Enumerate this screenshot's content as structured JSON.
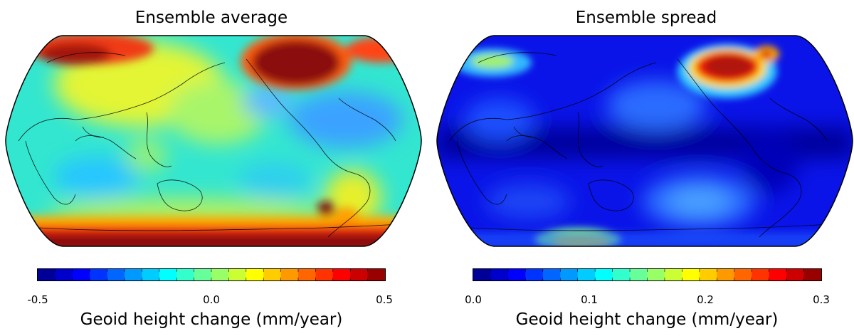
{
  "panels": [
    {
      "title": "Ensemble average",
      "colorbar": {
        "ticks": [
          "-0.5",
          "0.0",
          "0.5"
        ],
        "range": [
          -0.5,
          0.5
        ],
        "label": "Geoid height change (mm/year)"
      }
    },
    {
      "title": "Ensemble spread",
      "colorbar": {
        "ticks": [
          "0.0",
          "0.1",
          "0.2",
          "0.3"
        ],
        "range": [
          0.0,
          0.3
        ],
        "label": "Geoid height change (mm/year)"
      }
    }
  ],
  "colormap": {
    "name": "jet",
    "stops": [
      "#00007f",
      "#0000ff",
      "#007fff",
      "#00ffff",
      "#7fff7f",
      "#ffff00",
      "#ff7f00",
      "#ff0000",
      "#7f0000"
    ],
    "levels": 20
  },
  "projection": "robinson",
  "central_meridian": "180°"
}
